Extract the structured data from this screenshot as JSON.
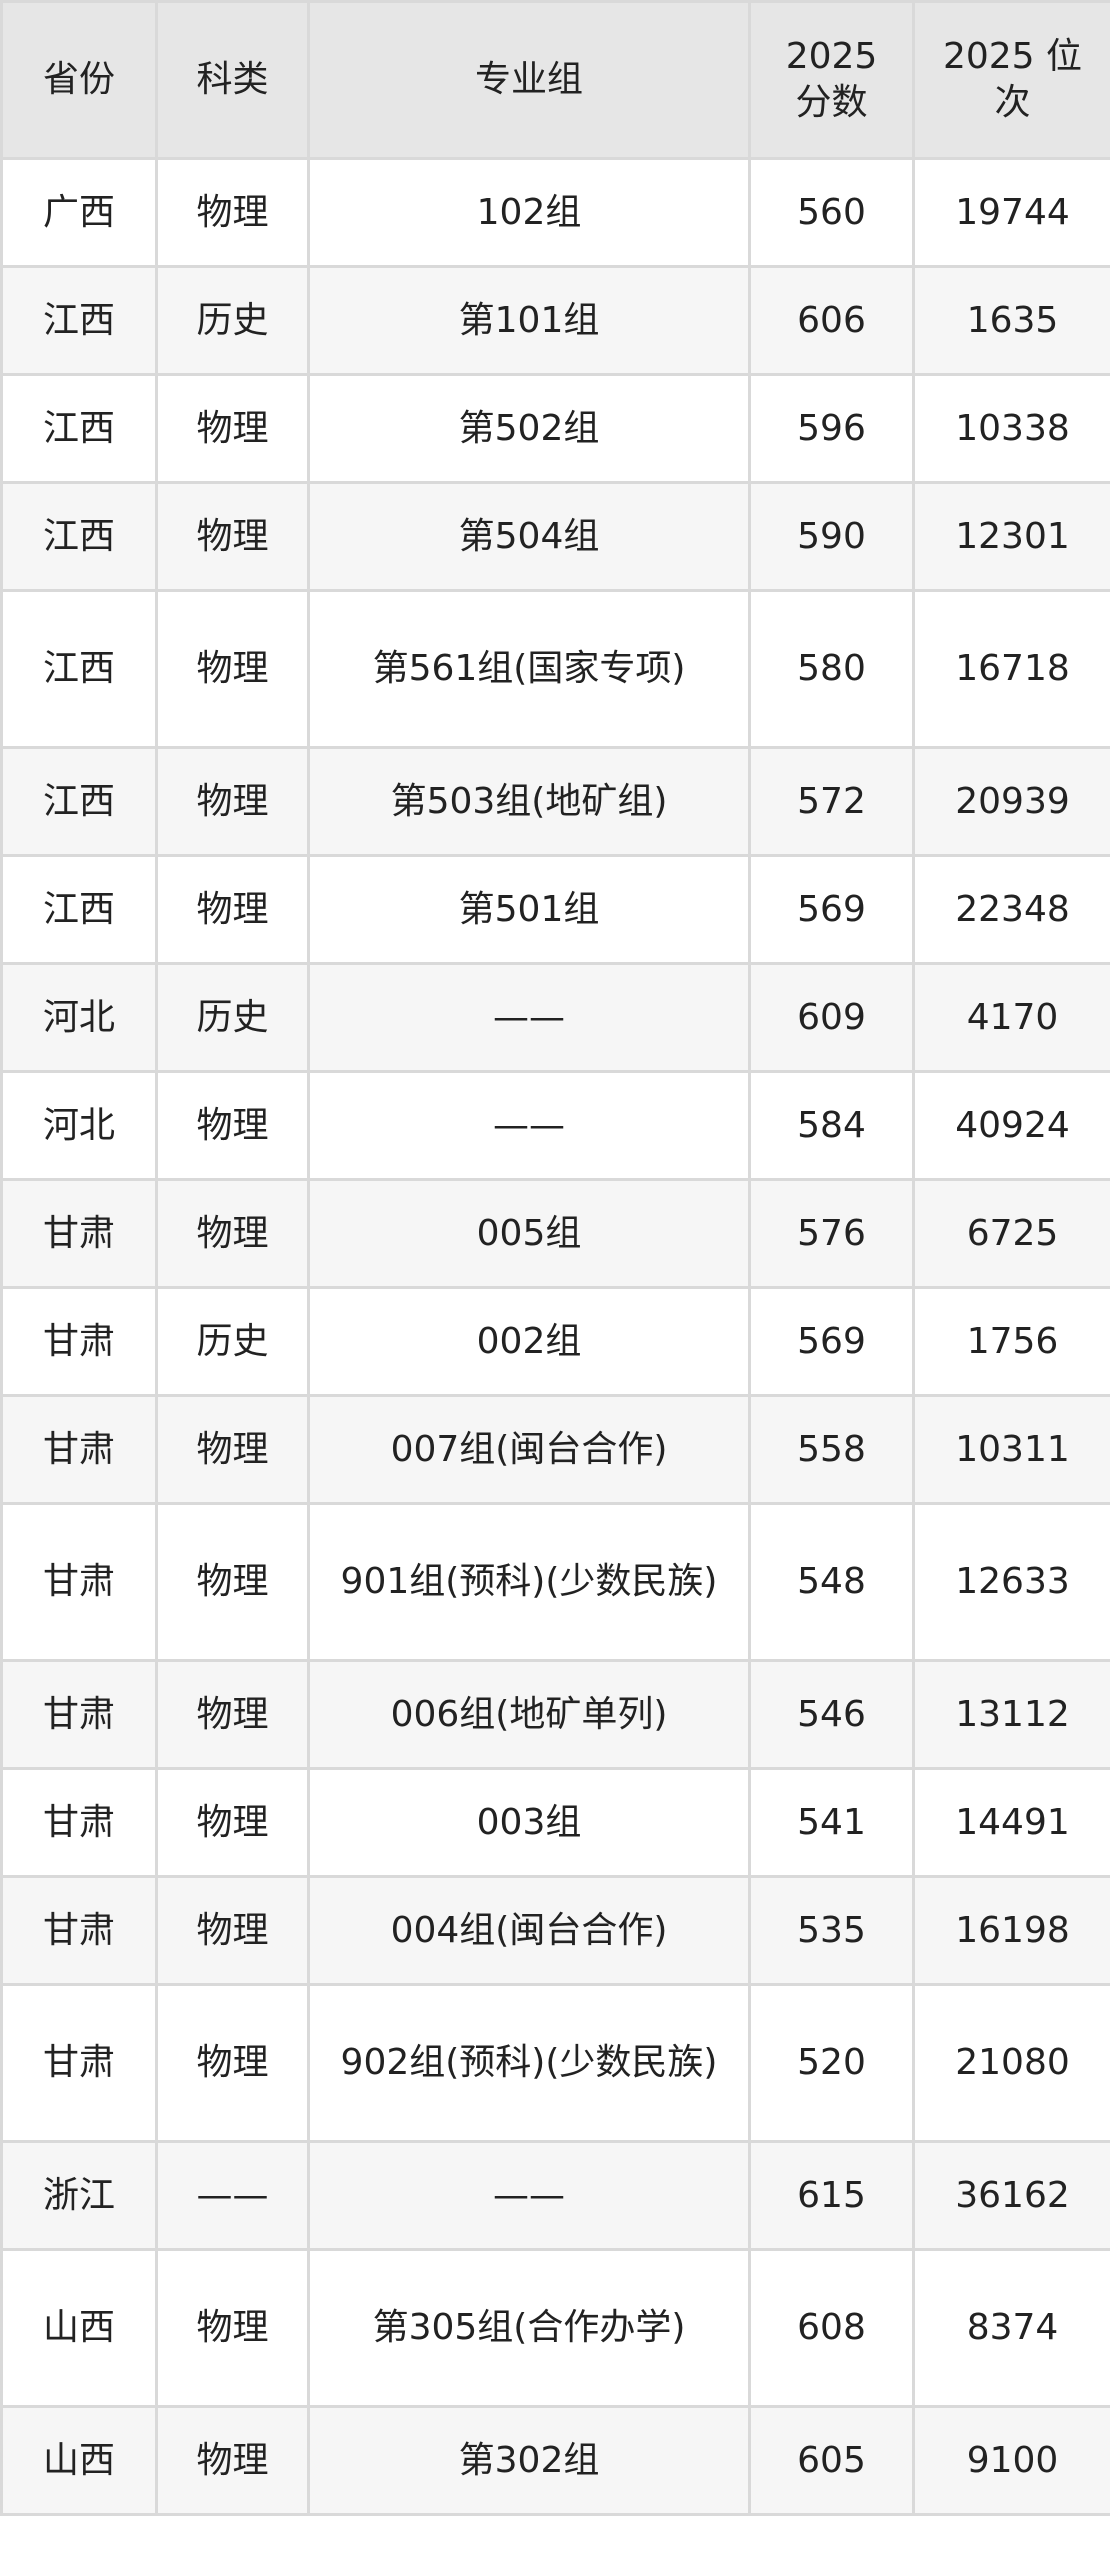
{
  "table": {
    "headers": [
      "省份",
      "科类",
      "专业组",
      "2025 分数",
      "2025 位次"
    ],
    "rows": [
      [
        "广西",
        "物理",
        "102组",
        "560",
        "19744"
      ],
      [
        "江西",
        "历史",
        "第101组",
        "606",
        "1635"
      ],
      [
        "江西",
        "物理",
        "第502组",
        "596",
        "10338"
      ],
      [
        "江西",
        "物理",
        "第504组",
        "590",
        "12301"
      ],
      [
        "江西",
        "物理",
        "第561组(国家专项)",
        "580",
        "16718"
      ],
      [
        "江西",
        "物理",
        "第503组(地矿组)",
        "572",
        "20939"
      ],
      [
        "江西",
        "物理",
        "第501组",
        "569",
        "22348"
      ],
      [
        "河北",
        "历史",
        "——",
        "609",
        "4170"
      ],
      [
        "河北",
        "物理",
        "——",
        "584",
        "40924"
      ],
      [
        "甘肃",
        "物理",
        "005组",
        "576",
        "6725"
      ],
      [
        "甘肃",
        "历史",
        "002组",
        "569",
        "1756"
      ],
      [
        "甘肃",
        "物理",
        "007组(闽台合作)",
        "558",
        "10311"
      ],
      [
        "甘肃",
        "物理",
        "901组(预科)(少数民族)",
        "548",
        "12633"
      ],
      [
        "甘肃",
        "物理",
        "006组(地矿单列)",
        "546",
        "13112"
      ],
      [
        "甘肃",
        "物理",
        "003组",
        "541",
        "14491"
      ],
      [
        "甘肃",
        "物理",
        "004组(闽台合作)",
        "535",
        "16198"
      ],
      [
        "甘肃",
        "物理",
        "902组(预科)(少数民族)",
        "520",
        "21080"
      ],
      [
        "浙江",
        "——",
        "——",
        "615",
        "36162"
      ],
      [
        "山西",
        "物理",
        "第305组(合作办学)",
        "608",
        "8374"
      ],
      [
        "山西",
        "物理",
        "第302组",
        "605",
        "9100"
      ]
    ]
  }
}
